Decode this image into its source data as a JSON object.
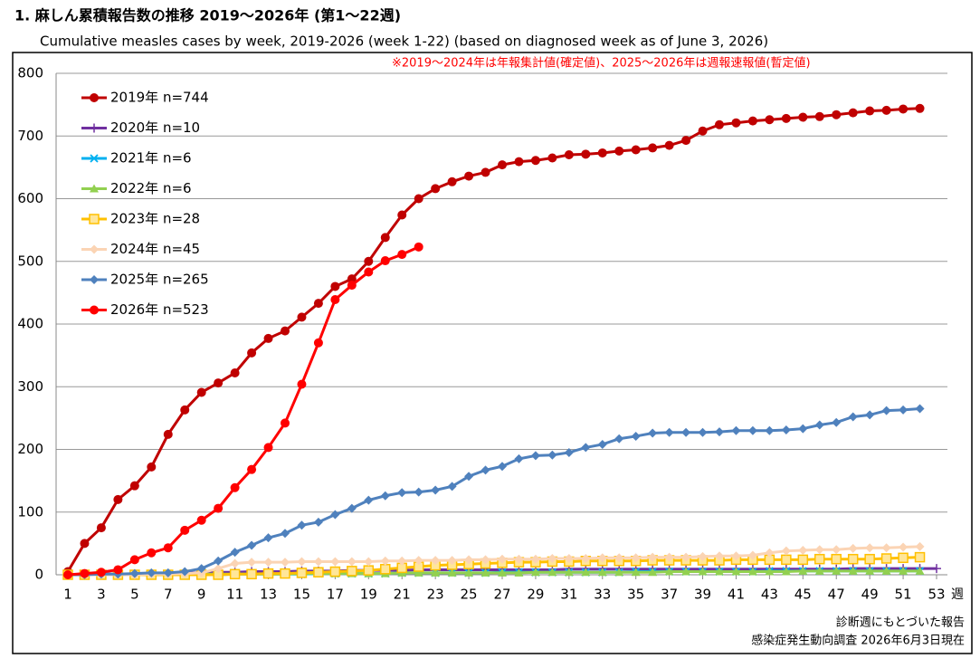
{
  "chart_data": {
    "type": "line",
    "title": "1. 麻しん累積報告数の推移  2019～2026年 (第1～22週)",
    "subtitle": "Cumulative measles cases by week, 2019-2026 (week 1-22)  (based on diagnosed week as of June 3, 2026)",
    "annotation": "※2019～2024年は年報集計値(確定値)、2025～2026年は週報速報値(暫定値)",
    "x_label": "週",
    "footnotes": [
      "診断週にもとづいた報告",
      "感染症発生動向調査 2026年6月3日現在"
    ],
    "x": [
      1,
      2,
      3,
      4,
      5,
      6,
      7,
      8,
      9,
      10,
      11,
      12,
      13,
      14,
      15,
      16,
      17,
      18,
      19,
      20,
      21,
      22,
      23,
      24,
      25,
      26,
      27,
      28,
      29,
      30,
      31,
      32,
      33,
      34,
      35,
      36,
      37,
      38,
      39,
      40,
      41,
      42,
      43,
      44,
      45,
      46,
      47,
      48,
      49,
      50,
      51,
      52,
      53
    ],
    "xlim": [
      1,
      53
    ],
    "xticks": [
      1,
      3,
      5,
      7,
      9,
      11,
      13,
      15,
      17,
      19,
      21,
      23,
      25,
      27,
      29,
      31,
      33,
      35,
      37,
      39,
      41,
      43,
      45,
      47,
      49,
      51,
      53
    ],
    "ylim": [
      0,
      800
    ],
    "yticks": [
      0,
      100,
      200,
      300,
      400,
      500,
      600,
      700,
      800
    ],
    "grid": true,
    "legend": "top-left",
    "series": [
      {
        "name": "2019年 n=744",
        "color": "#c00000",
        "marker": "circle",
        "values": [
          5,
          50,
          75,
          120,
          142,
          172,
          224,
          263,
          291,
          306,
          322,
          354,
          377,
          389,
          411,
          433,
          460,
          472,
          500,
          538,
          574,
          600,
          616,
          627,
          636,
          642,
          654,
          659,
          661,
          665,
          670,
          671,
          673,
          676,
          678,
          681,
          685,
          693,
          708,
          718,
          721,
          724,
          726,
          728,
          730,
          731,
          734,
          737,
          740,
          741,
          743,
          744,
          null
        ]
      },
      {
        "name": "2020年 n=10",
        "color": "#7030a0",
        "marker": "plus",
        "values": [
          0,
          0,
          1,
          1,
          1,
          2,
          2,
          3,
          3,
          4,
          4,
          5,
          5,
          5,
          6,
          6,
          6,
          7,
          7,
          7,
          7,
          8,
          8,
          8,
          8,
          8,
          8,
          8,
          8,
          8,
          9,
          9,
          9,
          9,
          9,
          9,
          9,
          9,
          9,
          9,
          9,
          9,
          9,
          9,
          9,
          9,
          9,
          10,
          10,
          10,
          10,
          10,
          10
        ]
      },
      {
        "name": "2021年 n=6",
        "color": "#00b0f0",
        "marker": "x",
        "values": [
          0,
          0,
          0,
          0,
          0,
          0,
          0,
          0,
          0,
          0,
          1,
          1,
          1,
          1,
          1,
          2,
          2,
          2,
          2,
          2,
          3,
          3,
          3,
          3,
          3,
          3,
          4,
          4,
          4,
          4,
          4,
          4,
          4,
          4,
          5,
          5,
          5,
          5,
          5,
          5,
          5,
          5,
          6,
          6,
          6,
          6,
          6,
          6,
          6,
          6,
          6,
          6,
          null
        ]
      },
      {
        "name": "2022年 n=6",
        "color": "#92d050",
        "marker": "triangle",
        "values": [
          0,
          0,
          0,
          0,
          0,
          0,
          0,
          0,
          1,
          1,
          1,
          1,
          1,
          1,
          2,
          2,
          2,
          2,
          2,
          2,
          3,
          3,
          3,
          3,
          3,
          3,
          3,
          3,
          4,
          4,
          4,
          4,
          4,
          4,
          4,
          4,
          5,
          5,
          5,
          5,
          5,
          5,
          5,
          5,
          6,
          6,
          6,
          6,
          6,
          6,
          6,
          6,
          null
        ]
      },
      {
        "name": "2023年 n=28",
        "color": "#ffc000",
        "marker": "square",
        "values": [
          0,
          0,
          0,
          0,
          0,
          0,
          0,
          0,
          0,
          0,
          1,
          1,
          2,
          2,
          3,
          4,
          5,
          6,
          7,
          9,
          11,
          13,
          15,
          16,
          17,
          18,
          19,
          20,
          20,
          21,
          21,
          22,
          22,
          22,
          22,
          23,
          23,
          23,
          23,
          23,
          24,
          24,
          24,
          24,
          24,
          25,
          25,
          25,
          25,
          26,
          27,
          28,
          null
        ]
      },
      {
        "name": "2024年 n=45",
        "color": "#fbd4b4",
        "marker": "diamond",
        "values": [
          0,
          0,
          0,
          0,
          0,
          1,
          1,
          2,
          3,
          10,
          18,
          20,
          20,
          20,
          21,
          21,
          21,
          21,
          21,
          22,
          22,
          23,
          23,
          23,
          24,
          24,
          25,
          25,
          25,
          26,
          26,
          26,
          27,
          27,
          27,
          28,
          28,
          28,
          29,
          30,
          30,
          31,
          35,
          38,
          39,
          40,
          40,
          42,
          43,
          43,
          44,
          45,
          null
        ]
      },
      {
        "name": "2025年 n=265",
        "color": "#4f81bd",
        "marker": "diamond",
        "values": [
          0,
          0,
          1,
          1,
          2,
          3,
          3,
          5,
          10,
          22,
          36,
          47,
          59,
          66,
          79,
          84,
          96,
          106,
          119,
          126,
          131,
          132,
          135,
          141,
          157,
          167,
          173,
          185,
          190,
          191,
          195,
          203,
          208,
          217,
          221,
          226,
          227,
          227,
          227,
          228,
          230,
          230,
          230,
          231,
          233,
          239,
          243,
          252,
          255,
          262,
          263,
          265,
          null
        ]
      },
      {
        "name": "2026年 n=523",
        "color": "#ff0000",
        "marker": "circle",
        "values": [
          0,
          2,
          4,
          8,
          24,
          35,
          43,
          71,
          87,
          106,
          139,
          168,
          203,
          242,
          304,
          370,
          439,
          462,
          483,
          501,
          511,
          523,
          null,
          null,
          null,
          null,
          null,
          null,
          null,
          null,
          null,
          null,
          null,
          null,
          null,
          null,
          null,
          null,
          null,
          null,
          null,
          null,
          null,
          null,
          null,
          null,
          null,
          null,
          null,
          null,
          null,
          null,
          null
        ]
      }
    ]
  }
}
